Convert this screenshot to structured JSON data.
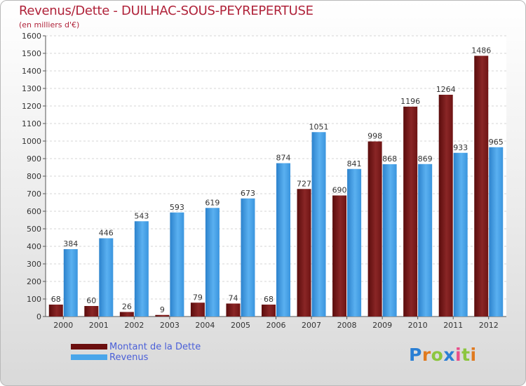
{
  "header": {
    "title": "Revenus/Dette - DUILHAC-SOUS-PEYREPERTUSE",
    "subtitle": "(en milliers d'€)"
  },
  "colors": {
    "title": "#b0233a",
    "dette": "#7a1a1a",
    "revenus": "#3f9be2",
    "legend_text": "#4a5fd8"
  },
  "legend": {
    "items": [
      {
        "label": "Montant de la Dette",
        "color": "#6b0f0f"
      },
      {
        "label": "Revenus",
        "color": "#4aa6ea"
      }
    ]
  },
  "logo": {
    "text": "Proxiti"
  },
  "chart_data": {
    "type": "bar",
    "title": "Revenus/Dette - DUILHAC-SOUS-PEYREPERTUSE",
    "subtitle": "(en milliers d'€)",
    "categories": [
      "2000",
      "2001",
      "2002",
      "2003",
      "2004",
      "2005",
      "2006",
      "2007",
      "2008",
      "2009",
      "2010",
      "2011",
      "2012"
    ],
    "series": [
      {
        "name": "Montant de la Dette",
        "values": [
          68,
          60,
          26,
          9,
          79,
          74,
          68,
          727,
          690,
          998,
          1196,
          1264,
          1486
        ]
      },
      {
        "name": "Revenus",
        "values": [
          384,
          446,
          543,
          593,
          619,
          673,
          874,
          1051,
          841,
          868,
          869,
          933,
          965
        ]
      }
    ],
    "ylim": [
      0,
      1600
    ],
    "yticks": [
      0,
      100,
      200,
      300,
      400,
      500,
      600,
      700,
      800,
      900,
      1000,
      1100,
      1200,
      1300,
      1400,
      1500,
      1600
    ],
    "grid": true,
    "legend_position": "bottom-left"
  }
}
